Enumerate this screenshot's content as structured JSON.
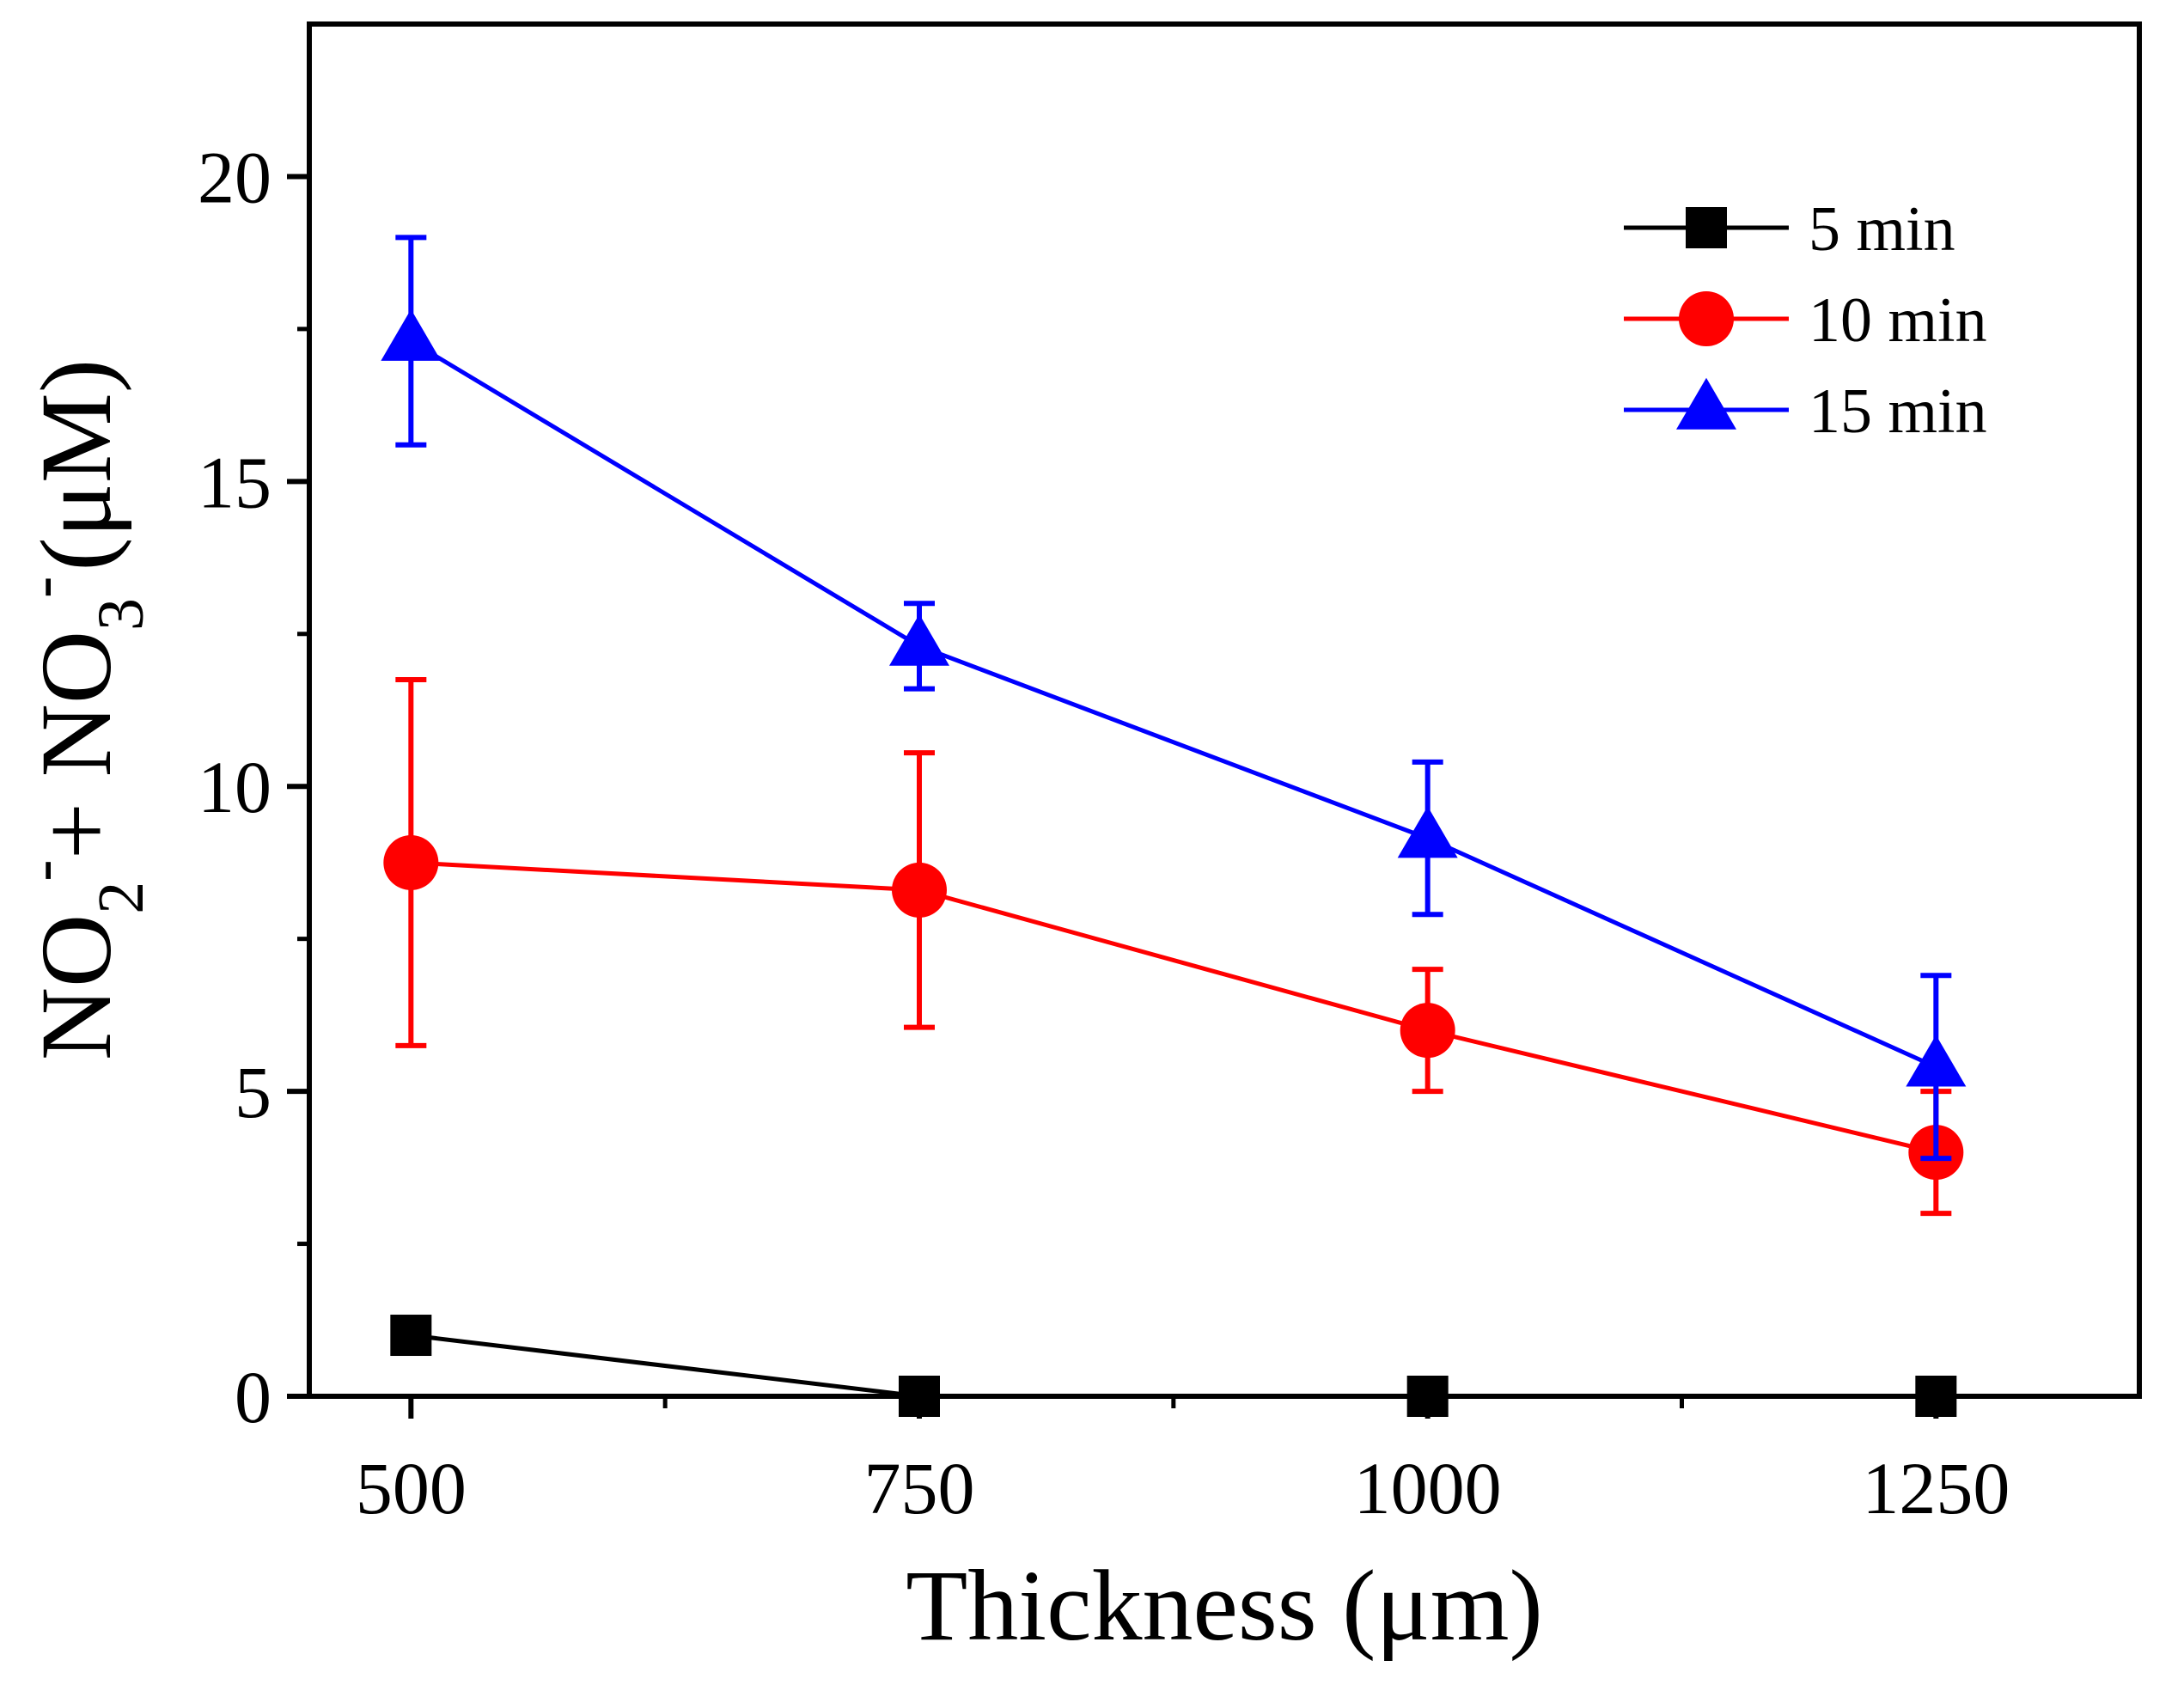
{
  "chart_data": {
    "type": "line",
    "title": "",
    "xlabel": "Thickness (μm)",
    "ylabel": {
      "parts": [
        "NO",
        "2",
        "-",
        "+ NO",
        "3",
        "-",
        "(μM)"
      ]
    },
    "x": [
      500,
      750,
      1000,
      1250
    ],
    "xlim": [
      450,
      1350
    ],
    "ylim": [
      0,
      22.5
    ],
    "xticks": [
      500,
      750,
      1000,
      1250
    ],
    "xticks_minor": [
      625,
      875,
      1125
    ],
    "yticks": [
      0,
      5,
      10,
      15,
      20
    ],
    "yticks_minor": [
      2.5,
      7.5,
      12.5,
      17.5
    ],
    "legend_position": "top-right",
    "series": [
      {
        "name": "5 min",
        "color": "#000000",
        "marker": "square",
        "values": [
          1.0,
          0.0,
          0.0,
          0.0
        ],
        "errors": [
          0,
          0,
          0,
          0
        ]
      },
      {
        "name": "10 min",
        "color": "#ff0000",
        "marker": "circle",
        "values": [
          8.75,
          8.3,
          6.0,
          4.0
        ],
        "errors": [
          3.0,
          2.25,
          1.0,
          1.0
        ]
      },
      {
        "name": "15 min",
        "color": "#0000ff",
        "marker": "triangle",
        "values": [
          17.3,
          12.3,
          9.15,
          5.4
        ],
        "errors": [
          1.7,
          0.7,
          1.25,
          1.5
        ]
      }
    ]
  }
}
